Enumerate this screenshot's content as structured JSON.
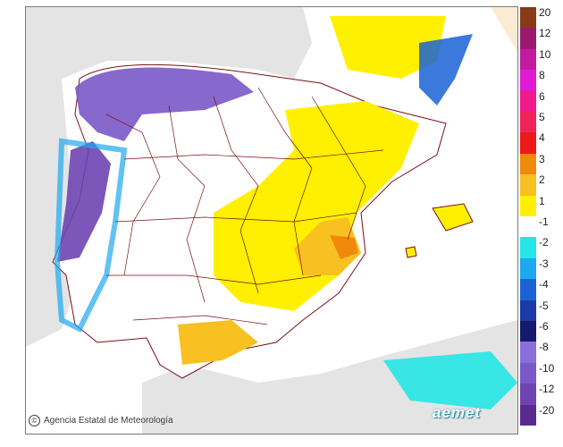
{
  "credit": {
    "icon": "copyright-icon",
    "text": "Agencia Estatal de Meteorología"
  },
  "logo": {
    "text": "aemet"
  },
  "legend": {
    "entries": [
      {
        "label": "20",
        "color": "#8a3a16"
      },
      {
        "label": "12",
        "color": "#9a1a6e"
      },
      {
        "label": "10",
        "color": "#c21aa0"
      },
      {
        "label": "8",
        "color": "#e01ad2"
      },
      {
        "label": "6",
        "color": "#f01a8c"
      },
      {
        "label": "5",
        "color": "#f0245a"
      },
      {
        "label": "4",
        "color": "#ee1a1a"
      },
      {
        "label": "3",
        "color": "#f08a0a"
      },
      {
        "label": "2",
        "color": "#f8c020"
      },
      {
        "label": "1",
        "color": "#fff000"
      },
      {
        "label": "-1",
        "color": "#ffffff"
      },
      {
        "label": "-2",
        "color": "#25e6e6"
      },
      {
        "label": "-3",
        "color": "#1ea8f0"
      },
      {
        "label": "-4",
        "color": "#1a62d6"
      },
      {
        "label": "-5",
        "color": "#1a3aa8"
      },
      {
        "label": "-6",
        "color": "#141a6e"
      },
      {
        "label": "-8",
        "color": "#8870d8"
      },
      {
        "label": "-10",
        "color": "#7a58c8"
      },
      {
        "label": "-12",
        "color": "#6e44b0"
      },
      {
        "label": "-20",
        "color": "#5a2a90"
      }
    ]
  },
  "colors": {
    "land": "#ffffff",
    "sea": "#ffffff",
    "outside": "#e4e4e4",
    "borders": "#7a0f14",
    "coast": "#7a0f14"
  }
}
